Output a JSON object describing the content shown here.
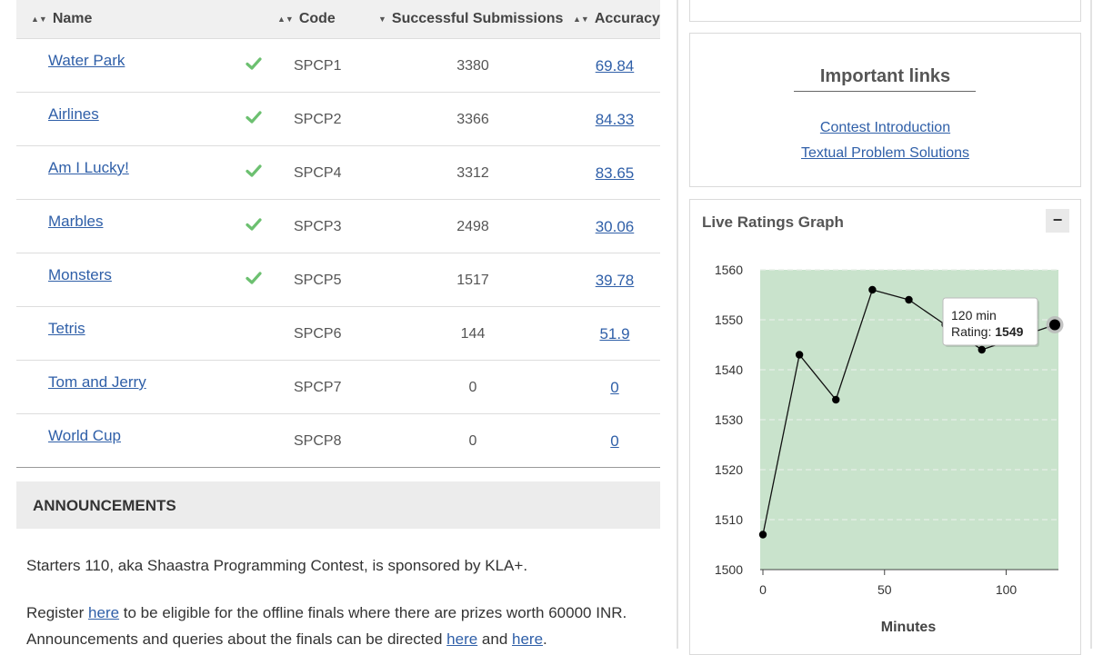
{
  "table": {
    "headers": {
      "name": "Name",
      "code": "Code",
      "successful": "Successful Submissions",
      "accuracy": "Accuracy"
    },
    "sort_icons": {
      "name": "sort-both",
      "code": "sort-both",
      "successful": "sort-desc",
      "accuracy": "sort-both"
    },
    "rows": [
      {
        "name": "Water Park",
        "solved": true,
        "code": "SPCP1",
        "successful": "3380",
        "accuracy": "69.84"
      },
      {
        "name": "Airlines",
        "solved": true,
        "code": "SPCP2",
        "successful": "3366",
        "accuracy": "84.33"
      },
      {
        "name": "Am I Lucky!",
        "solved": true,
        "code": "SPCP4",
        "successful": "3312",
        "accuracy": "83.65"
      },
      {
        "name": "Marbles",
        "solved": true,
        "code": "SPCP3",
        "successful": "2498",
        "accuracy": "30.06"
      },
      {
        "name": "Monsters",
        "solved": true,
        "code": "SPCP5",
        "successful": "1517",
        "accuracy": "39.78"
      },
      {
        "name": "Tetris",
        "solved": false,
        "code": "SPCP6",
        "successful": "144",
        "accuracy": "51.9"
      },
      {
        "name": "Tom and Jerry",
        "solved": false,
        "code": "SPCP7",
        "successful": "0",
        "accuracy": "0"
      },
      {
        "name": "World Cup",
        "solved": false,
        "code": "SPCP8",
        "successful": "0",
        "accuracy": "0"
      }
    ]
  },
  "announcements": {
    "title": "ANNOUNCEMENTS",
    "line1": "Starters 110, aka Shaastra Programming Contest, is sponsored by KLA+.",
    "line2_before": "Register ",
    "line2_link": "here",
    "line2_after": " to be eligible for the offline finals where there are prizes worth 60000 INR.",
    "line3_before": "Announcements and queries about the finals can be directed ",
    "line3_link1": "here",
    "line3_mid": " and ",
    "line3_link2": "here",
    "line3_after": "."
  },
  "important_links": {
    "title": "Important links",
    "links": [
      "Contest Introduction",
      "Textual Problem Solutions"
    ]
  },
  "ratings_graph": {
    "title": "Live Ratings Graph",
    "collapse_icon": "minus",
    "tooltip": {
      "time": "120 min",
      "label": "Rating: ",
      "value": "1549"
    }
  },
  "colors": {
    "link": "#2f5fa8",
    "check": "#6cc070",
    "plot_bg": "#c9e3cc"
  },
  "chart_data": {
    "type": "line",
    "title": "",
    "xlabel": "Minutes",
    "ylabel": "",
    "xlim": [
      0,
      120
    ],
    "ylim": [
      1500,
      1560
    ],
    "xticks": [
      0,
      50,
      100
    ],
    "yticks": [
      1500,
      1510,
      1520,
      1530,
      1540,
      1550,
      1560
    ],
    "x": [
      0,
      15,
      30,
      45,
      60,
      75,
      90,
      120
    ],
    "y": [
      1507,
      1543,
      1534,
      1556,
      1554,
      1549,
      1544,
      1549
    ],
    "grid": true,
    "highlight_index": 7
  }
}
